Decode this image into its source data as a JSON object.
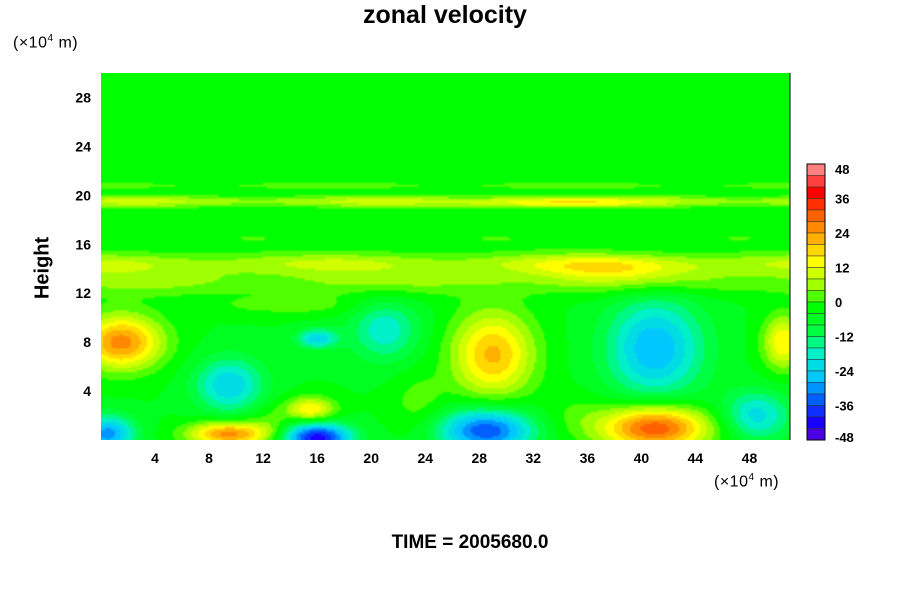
{
  "chart_data": {
    "type": "heatmap",
    "title": "zonal velocity",
    "ylabel": "Height",
    "x_unit": "(×10",
    "y_unit": "(×10",
    "unit_exp": "4",
    "unit_tail": " m)",
    "footer": "TIME = 2005680.0",
    "xlim": [
      0,
      51
    ],
    "ylim": [
      0,
      30
    ],
    "x_ticks": [
      4,
      8,
      12,
      16,
      20,
      24,
      28,
      32,
      36,
      40,
      44,
      48
    ],
    "y_ticks": [
      4,
      8,
      12,
      16,
      20,
      24,
      28
    ],
    "x_tick_labels": [
      "4",
      "8",
      "12",
      "16",
      "20",
      "24",
      "28",
      "32",
      "36",
      "40",
      "44",
      "48"
    ],
    "y_tick_labels": [
      "4",
      "8",
      "12",
      "16",
      "20",
      "24",
      "28"
    ],
    "colorbar_ticks": [
      48,
      36,
      24,
      12,
      0,
      -12,
      -24,
      -36,
      -48
    ],
    "colorbar_tick_labels": [
      "48",
      "36",
      "24",
      "12",
      "0",
      "-12",
      "-24",
      "-36",
      "-48"
    ],
    "colorbar_range": [
      -48,
      48
    ],
    "colormap": [
      "#7a00c0",
      "#1a00ff",
      "#0060ff",
      "#00c8ff",
      "#00f0c8",
      "#00ff40",
      "#00ff00",
      "#a0ff00",
      "#ffff00",
      "#ffb000",
      "#ff6000",
      "#ff0000",
      "#ff8080"
    ],
    "background_value": -2,
    "features": [
      {
        "x": 1.5,
        "y": 8.0,
        "value": 30,
        "sx": 3.0,
        "sy": 2.2
      },
      {
        "x": 50.5,
        "y": 8.0,
        "value": 20,
        "sx": 1.5,
        "sy": 2.2
      },
      {
        "x": 9.5,
        "y": 0.5,
        "value": 30,
        "sx": 3.0,
        "sy": 1.0
      },
      {
        "x": 15.5,
        "y": 2.5,
        "value": 20,
        "sx": 1.8,
        "sy": 1.0
      },
      {
        "x": 29.0,
        "y": 7.0,
        "value": 25,
        "sx": 3.0,
        "sy": 3.5
      },
      {
        "x": 41.0,
        "y": 1.0,
        "value": 36,
        "sx": 4.0,
        "sy": 1.8
      },
      {
        "x": 0.5,
        "y": 0.5,
        "value": -26,
        "sx": 2.0,
        "sy": 1.5
      },
      {
        "x": 9.5,
        "y": 4.5,
        "value": -20,
        "sx": 2.5,
        "sy": 2.2
      },
      {
        "x": 16.0,
        "y": 0.2,
        "value": -38,
        "sx": 2.5,
        "sy": 1.2
      },
      {
        "x": 16.0,
        "y": 8.3,
        "value": -20,
        "sx": 1.5,
        "sy": 0.8
      },
      {
        "x": 21.0,
        "y": 9.0,
        "value": -15,
        "sx": 2.5,
        "sy": 2.5
      },
      {
        "x": 28.5,
        "y": 0.8,
        "value": -32,
        "sx": 3.5,
        "sy": 1.8
      },
      {
        "x": 41.0,
        "y": 7.5,
        "value": -24,
        "sx": 3.5,
        "sy": 4.0
      },
      {
        "x": 48.5,
        "y": 2.0,
        "value": -18,
        "sx": 2.5,
        "sy": 2.0
      },
      {
        "x": 12.5,
        "y": 1.5,
        "value": 5,
        "sx": 1.5,
        "sy": 1.5
      },
      {
        "x": 23.5,
        "y": 3.0,
        "value": 6,
        "sx": 2.0,
        "sy": 2.5
      },
      {
        "x": 35.0,
        "y": 2.0,
        "value": 4,
        "sx": 2.5,
        "sy": 2.0
      }
    ],
    "bands": [
      {
        "y": 13.0,
        "value": 10,
        "sy": 1.2
      },
      {
        "y": 14.5,
        "value": 12,
        "sy": 0.9
      },
      {
        "y": 16.5,
        "value": 4,
        "sy": 0.8
      },
      {
        "y": 19.5,
        "value": 14,
        "sy": 0.5
      },
      {
        "y": 20.8,
        "value": 6,
        "sy": 0.4
      },
      {
        "y": 22.5,
        "value": 3,
        "sy": 0.5
      }
    ],
    "band_blobs": [
      {
        "x": 33.0,
        "y": 19.4,
        "value": 10,
        "sx": 6.0,
        "sy": 0.4
      },
      {
        "x": 38.0,
        "y": 14.0,
        "value": 10,
        "sx": 6.0,
        "sy": 1.0
      },
      {
        "x": 14.0,
        "y": 11.0,
        "value": 6,
        "sx": 6.0,
        "sy": 0.8
      }
    ]
  }
}
